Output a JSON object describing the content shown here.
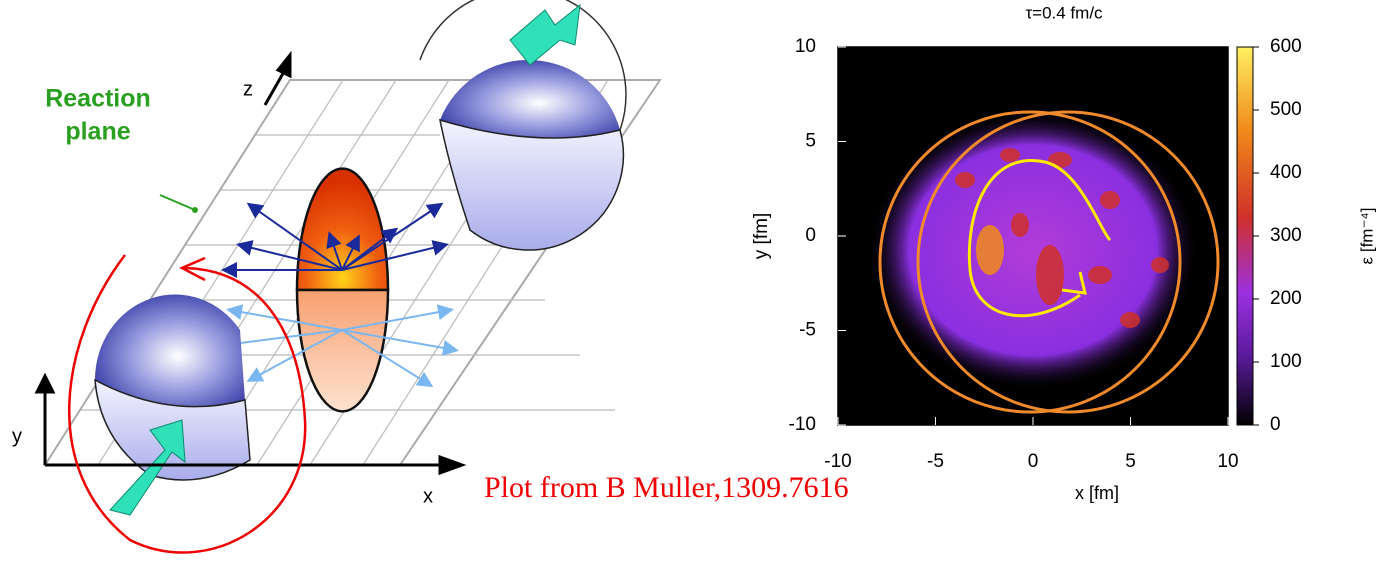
{
  "diagram": {
    "reaction_plane_lines": [
      "Reaction",
      "plane"
    ],
    "axis_z": "z",
    "axis_y": "y",
    "axis_x": "x"
  },
  "chart_data": {
    "type": "heatmap",
    "title": "τ=0.4 fm/c",
    "x_label": "x [fm]",
    "y_label": "y [fm]",
    "colorbar_label": "ε [fm⁻⁴]",
    "xlim": [
      -10,
      10
    ],
    "xticks": [
      -10,
      -5,
      0,
      5,
      10
    ],
    "ylim": [
      -10,
      10
    ],
    "yticks": [
      -10,
      -5,
      0,
      5,
      10
    ],
    "clim": [
      0,
      600
    ],
    "cticks": [
      0,
      100,
      200,
      300,
      400,
      500,
      600
    ],
    "annotation": "Plot from B Muller,1309.7616"
  }
}
